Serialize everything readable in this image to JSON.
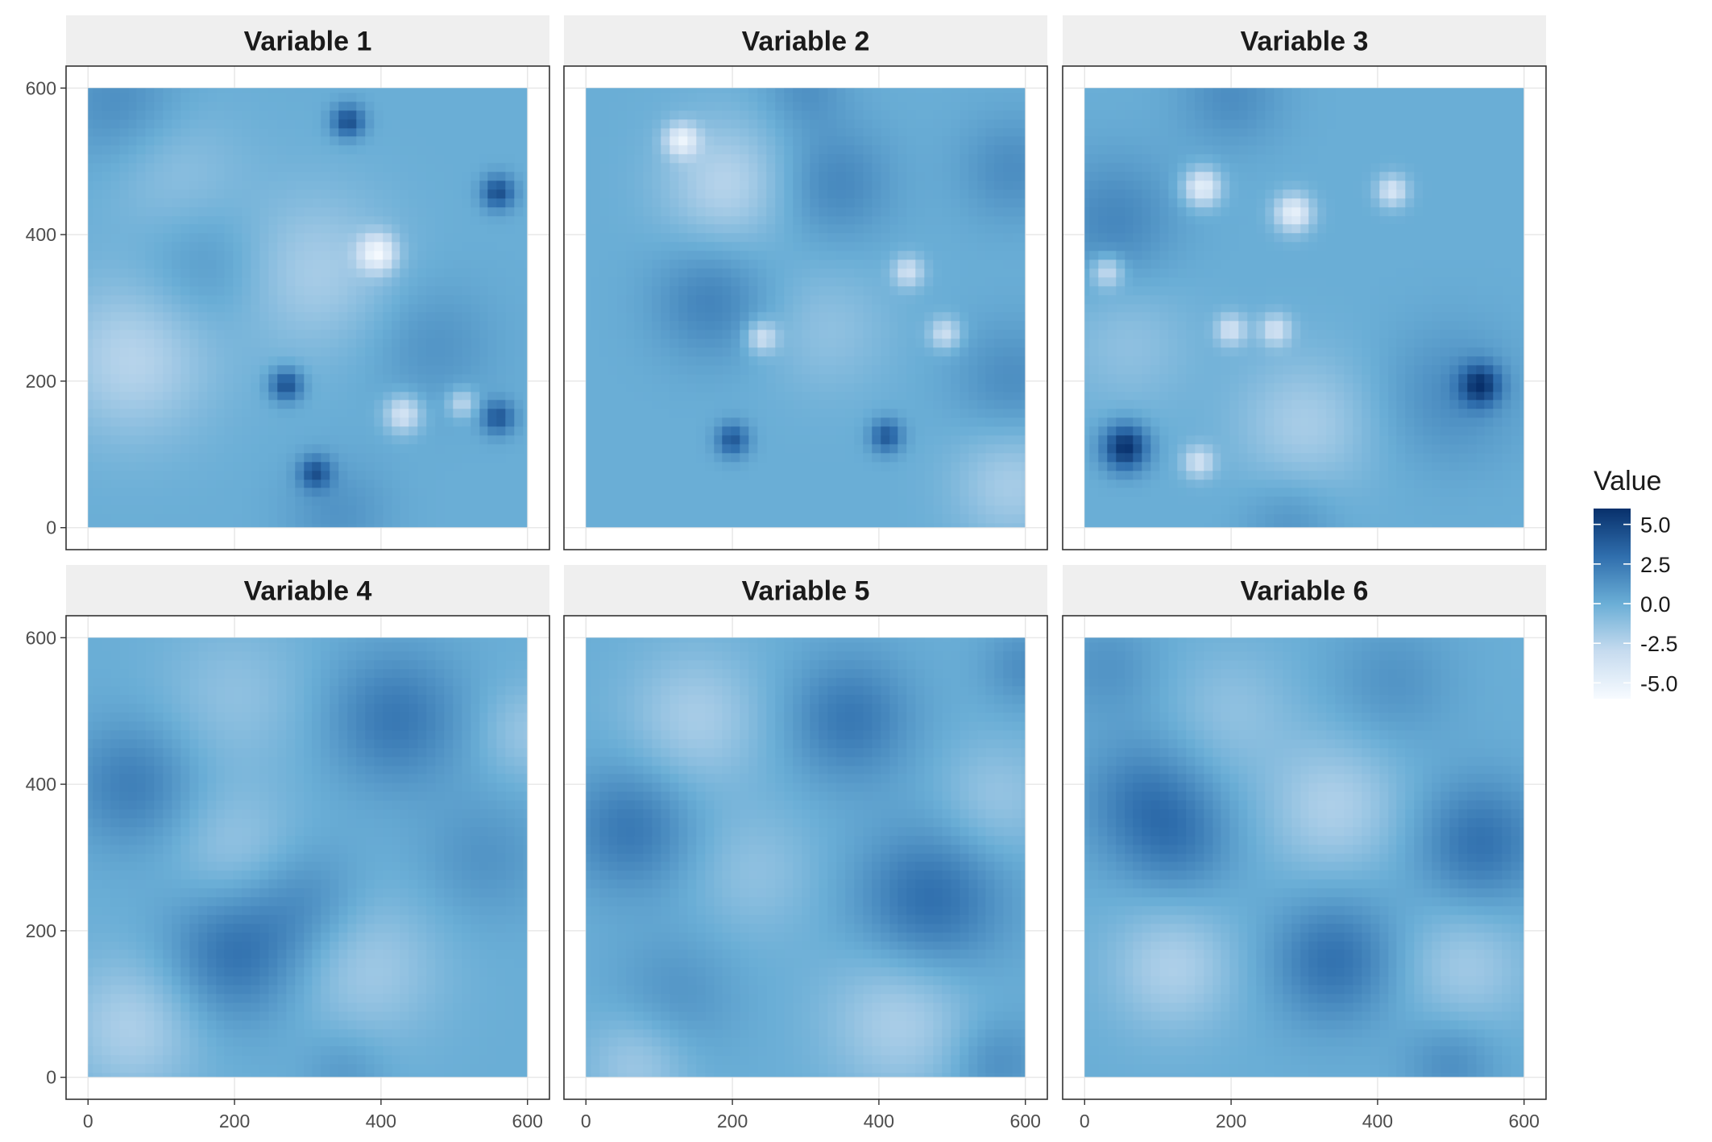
{
  "chart_data": {
    "type": "heatmap",
    "facets": [
      {
        "title": "Variable 1",
        "peaks": [
          {
            "x": 40,
            "y": 580,
            "v": 1.5,
            "s": 60
          },
          {
            "x": 355,
            "y": 555,
            "v": 4.5,
            "s": 16
          },
          {
            "x": 560,
            "y": 458,
            "v": 4.5,
            "s": 16
          },
          {
            "x": 395,
            "y": 375,
            "v": -5,
            "s": 18
          },
          {
            "x": 270,
            "y": 195,
            "v": 4.5,
            "s": 16
          },
          {
            "x": 430,
            "y": 155,
            "v": -4,
            "s": 18
          },
          {
            "x": 510,
            "y": 170,
            "v": -3,
            "s": 14
          },
          {
            "x": 560,
            "y": 150,
            "v": 4,
            "s": 16
          },
          {
            "x": 310,
            "y": 75,
            "v": 4,
            "s": 16
          },
          {
            "x": 60,
            "y": 230,
            "v": -2.5,
            "s": 75
          },
          {
            "x": 310,
            "y": 350,
            "v": -2,
            "s": 75
          },
          {
            "x": 160,
            "y": 360,
            "v": 1.2,
            "s": 60
          },
          {
            "x": 470,
            "y": 250,
            "v": 1.2,
            "s": 60
          },
          {
            "x": 340,
            "y": 20,
            "v": 1.2,
            "s": 50
          },
          {
            "x": 120,
            "y": 480,
            "v": -1.2,
            "s": 65
          }
        ]
      },
      {
        "title": "Variable 2",
        "peaks": [
          {
            "x": 130,
            "y": 530,
            "v": -4.5,
            "s": 16
          },
          {
            "x": 190,
            "y": 470,
            "v": -2.5,
            "s": 60
          },
          {
            "x": 440,
            "y": 350,
            "v": -3.5,
            "s": 15
          },
          {
            "x": 240,
            "y": 260,
            "v": -3.5,
            "s": 15
          },
          {
            "x": 490,
            "y": 265,
            "v": -3.5,
            "s": 15
          },
          {
            "x": 200,
            "y": 120,
            "v": 4,
            "s": 16
          },
          {
            "x": 410,
            "y": 125,
            "v": 4,
            "s": 16
          },
          {
            "x": 170,
            "y": 310,
            "v": 2,
            "s": 55
          },
          {
            "x": 340,
            "y": 470,
            "v": 1.8,
            "s": 55
          },
          {
            "x": 580,
            "y": 490,
            "v": 1.5,
            "s": 50
          },
          {
            "x": 580,
            "y": 200,
            "v": 1.5,
            "s": 55
          },
          {
            "x": 300,
            "y": 600,
            "v": 1.3,
            "s": 40
          },
          {
            "x": 580,
            "y": 60,
            "v": -2,
            "s": 55
          },
          {
            "x": 330,
            "y": 270,
            "v": -1.2,
            "s": 60
          }
        ]
      },
      {
        "title": "Variable 3",
        "peaks": [
          {
            "x": 160,
            "y": 465,
            "v": -5,
            "s": 18
          },
          {
            "x": 285,
            "y": 430,
            "v": -5,
            "s": 18
          },
          {
            "x": 420,
            "y": 460,
            "v": -4,
            "s": 15
          },
          {
            "x": 30,
            "y": 350,
            "v": -3.5,
            "s": 15
          },
          {
            "x": 200,
            "y": 270,
            "v": -3.5,
            "s": 15
          },
          {
            "x": 260,
            "y": 270,
            "v": -3.5,
            "s": 15
          },
          {
            "x": 155,
            "y": 90,
            "v": -3.5,
            "s": 15
          },
          {
            "x": 55,
            "y": 110,
            "v": 6,
            "s": 22
          },
          {
            "x": 540,
            "y": 195,
            "v": 5,
            "s": 20
          },
          {
            "x": 40,
            "y": 420,
            "v": 1.8,
            "s": 60
          },
          {
            "x": 200,
            "y": 590,
            "v": 1.5,
            "s": 50
          },
          {
            "x": 300,
            "y": 140,
            "v": -2,
            "s": 65
          },
          {
            "x": 500,
            "y": 180,
            "v": 1.5,
            "s": 65
          },
          {
            "x": 60,
            "y": 250,
            "v": -1.2,
            "s": 60
          },
          {
            "x": 280,
            "y": 10,
            "v": 1.2,
            "s": 45
          }
        ]
      },
      {
        "title": "Variable 4",
        "peaks": [
          {
            "x": 60,
            "y": 400,
            "v": 2.2,
            "s": 60
          },
          {
            "x": 420,
            "y": 490,
            "v": 2.5,
            "s": 65
          },
          {
            "x": 200,
            "y": 170,
            "v": 2.8,
            "s": 65
          },
          {
            "x": 300,
            "y": 240,
            "v": 1.5,
            "s": 55
          },
          {
            "x": 60,
            "y": 70,
            "v": -2.2,
            "s": 65
          },
          {
            "x": 380,
            "y": 150,
            "v": -1.8,
            "s": 70
          },
          {
            "x": 200,
            "y": 310,
            "v": -1.5,
            "s": 60
          },
          {
            "x": 200,
            "y": 520,
            "v": -1.2,
            "s": 70
          },
          {
            "x": 600,
            "y": 470,
            "v": -1.5,
            "s": 45
          },
          {
            "x": 540,
            "y": 300,
            "v": 1.2,
            "s": 60
          },
          {
            "x": 350,
            "y": 10,
            "v": 1.0,
            "s": 40
          }
        ]
      },
      {
        "title": "Variable 5",
        "peaks": [
          {
            "x": 60,
            "y": 340,
            "v": 2.5,
            "s": 60
          },
          {
            "x": 360,
            "y": 490,
            "v": 2.5,
            "s": 60
          },
          {
            "x": 470,
            "y": 240,
            "v": 3,
            "s": 70
          },
          {
            "x": 120,
            "y": 110,
            "v": 1.2,
            "s": 60
          },
          {
            "x": 150,
            "y": 490,
            "v": -2,
            "s": 65
          },
          {
            "x": 430,
            "y": 80,
            "v": -2.2,
            "s": 70
          },
          {
            "x": 70,
            "y": 20,
            "v": -1.8,
            "s": 50
          },
          {
            "x": 230,
            "y": 280,
            "v": -1.2,
            "s": 60
          },
          {
            "x": 560,
            "y": 380,
            "v": -1.5,
            "s": 55
          },
          {
            "x": 600,
            "y": 560,
            "v": 1.5,
            "s": 40
          },
          {
            "x": 560,
            "y": 20,
            "v": 1.5,
            "s": 45
          }
        ]
      },
      {
        "title": "Variable 6",
        "peaks": [
          {
            "x": 80,
            "y": 380,
            "v": 2.2,
            "s": 60
          },
          {
            "x": 130,
            "y": 320,
            "v": 1.8,
            "s": 55
          },
          {
            "x": 540,
            "y": 320,
            "v": 2.8,
            "s": 60
          },
          {
            "x": 340,
            "y": 160,
            "v": 2.8,
            "s": 60
          },
          {
            "x": 120,
            "y": 150,
            "v": -2.2,
            "s": 60
          },
          {
            "x": 340,
            "y": 370,
            "v": -2.2,
            "s": 65
          },
          {
            "x": 520,
            "y": 150,
            "v": -1.8,
            "s": 60
          },
          {
            "x": 200,
            "y": 500,
            "v": -1.2,
            "s": 60
          },
          {
            "x": 420,
            "y": 540,
            "v": 1.2,
            "s": 60
          },
          {
            "x": 500,
            "y": 20,
            "v": 1.5,
            "s": 45
          },
          {
            "x": 30,
            "y": 560,
            "v": 1.2,
            "s": 50
          }
        ]
      }
    ],
    "x_ticks": [
      0,
      200,
      400,
      600
    ],
    "y_ticks": [
      0,
      200,
      400,
      600
    ],
    "xlim": [
      -30,
      630
    ],
    "ylim": [
      -30,
      630
    ],
    "data_range": [
      0,
      600
    ],
    "legend": {
      "title": "Value",
      "breaks": [
        5.0,
        2.5,
        0.0,
        -2.5,
        -5.0
      ],
      "labels": [
        "5.0",
        "2.5",
        "0.0",
        "-2.5",
        "-5.0"
      ],
      "limits": [
        -6,
        6
      ],
      "position": "right"
    },
    "colors": {
      "low": "#f7fbff",
      "mid": "#6aaed6",
      "high": "#08306b",
      "strip_bg": "#efefef",
      "panel_border": "#333333",
      "grid": "#e4e4e4"
    }
  }
}
